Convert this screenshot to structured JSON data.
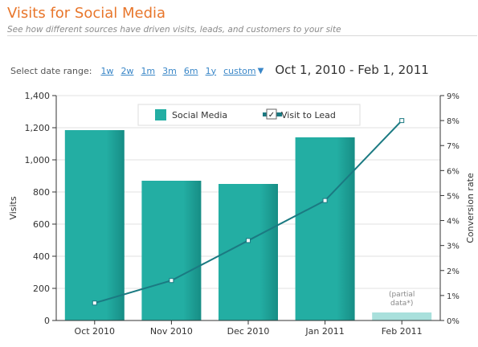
{
  "header": {
    "title": "Visits for Social Media",
    "subtitle": "See how different sources have driven visits, leads, and customers to your site"
  },
  "date_range": {
    "label": "Select date range:",
    "options": [
      "1w",
      "2w",
      "1m",
      "3m",
      "6m",
      "1y"
    ],
    "custom_label": "custom",
    "caret": "▼",
    "range_text": "Oct 1, 2010 - Feb 1, 2011"
  },
  "colors": {
    "bar": "#23aea3",
    "bar_dark": "#178d85",
    "bar_partial": "#a9e0dc",
    "line": "#1b7a82",
    "title": "#e8762b",
    "link": "#3a87c8"
  },
  "chart_data": {
    "type": "bar",
    "categories": [
      "Oct 2010",
      "Nov 2010",
      "Dec 2010",
      "Jan 2011",
      "Feb 2011"
    ],
    "series": [
      {
        "name": "Social Media",
        "type": "bar",
        "axis": "left",
        "values": [
          1185,
          870,
          850,
          1140,
          50
        ]
      },
      {
        "name": "Visit to Lead",
        "type": "line",
        "axis": "right",
        "values": [
          0.7,
          1.6,
          3.2,
          4.8,
          8.0
        ]
      }
    ],
    "ylabel": "Visits",
    "ylim": [
      0,
      1400
    ],
    "yticks": [
      "0",
      "200",
      "400",
      "600",
      "800",
      "1,000",
      "1,200",
      "1,400"
    ],
    "y2label": "Conversion rate",
    "y2lim": [
      0,
      9
    ],
    "y2ticks": [
      "0%",
      "1%",
      "2%",
      "3%",
      "4%",
      "5%",
      "6%",
      "7%",
      "8%",
      "9%"
    ],
    "annotation": {
      "lines": [
        "(partial",
        "data*)"
      ]
    },
    "legend": {
      "position": "top",
      "checkbox_mark": "✓"
    },
    "grid": true
  }
}
